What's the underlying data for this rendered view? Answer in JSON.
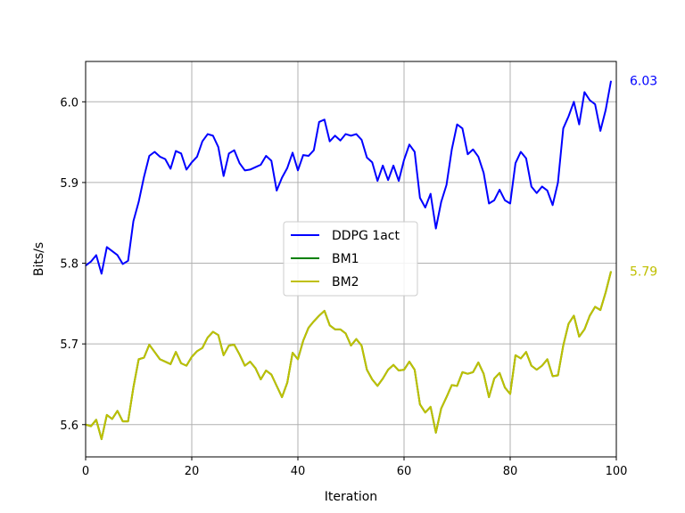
{
  "chart_data": {
    "type": "line",
    "title": "",
    "xlabel": "Iteration",
    "ylabel": "Bits/s",
    "xlim": [
      0,
      100
    ],
    "ylim": [
      5.56,
      6.05
    ],
    "xticks": [
      0,
      20,
      40,
      60,
      80,
      100
    ],
    "yticks": [
      5.6,
      5.7,
      5.8,
      5.9,
      6.0
    ],
    "grid": true,
    "legend": "center",
    "series": [
      {
        "name": "DDPG 1act",
        "color": "#0000ff",
        "values": [
          5.797,
          5.802,
          5.81,
          5.787,
          5.82,
          5.815,
          5.81,
          5.799,
          5.803,
          5.852,
          5.876,
          5.907,
          5.933,
          5.938,
          5.932,
          5.929,
          5.917,
          5.939,
          5.936,
          5.916,
          5.925,
          5.932,
          5.951,
          5.96,
          5.958,
          5.944,
          5.908,
          5.936,
          5.94,
          5.924,
          5.915,
          5.916,
          5.919,
          5.922,
          5.933,
          5.927,
          5.89,
          5.906,
          5.918,
          5.937,
          5.915,
          5.934,
          5.933,
          5.94,
          5.975,
          5.978,
          5.951,
          5.958,
          5.952,
          5.96,
          5.958,
          5.96,
          5.953,
          5.931,
          5.925,
          5.902,
          5.921,
          5.903,
          5.921,
          5.902,
          5.928,
          5.947,
          5.938,
          5.881,
          5.869,
          5.886,
          5.843,
          5.876,
          5.897,
          5.941,
          5.972,
          5.967,
          5.935,
          5.941,
          5.932,
          5.912,
          5.874,
          5.878,
          5.891,
          5.878,
          5.874,
          5.924,
          5.938,
          5.93,
          5.895,
          5.887,
          5.895,
          5.89,
          5.872,
          5.9,
          5.967,
          5.982,
          6.0,
          5.972,
          6.012,
          6.002,
          5.997,
          5.964,
          5.99,
          6.026
        ]
      },
      {
        "name": "BM1",
        "color": "#008000",
        "values": [
          5.6,
          5.598,
          5.606,
          5.582,
          5.612,
          5.607,
          5.617,
          5.604,
          5.604,
          5.646,
          5.681,
          5.683,
          5.699,
          5.69,
          5.681,
          5.678,
          5.675,
          5.69,
          5.676,
          5.673,
          5.684,
          5.691,
          5.695,
          5.708,
          5.715,
          5.711,
          5.686,
          5.698,
          5.699,
          5.687,
          5.673,
          5.678,
          5.67,
          5.656,
          5.667,
          5.662,
          5.648,
          5.634,
          5.652,
          5.689,
          5.681,
          5.704,
          5.72,
          5.728,
          5.735,
          5.741,
          5.723,
          5.718,
          5.718,
          5.713,
          5.698,
          5.706,
          5.698,
          5.668,
          5.656,
          5.648,
          5.657,
          5.668,
          5.674,
          5.667,
          5.668,
          5.678,
          5.668,
          5.625,
          5.615,
          5.622,
          5.59,
          5.62,
          5.634,
          5.649,
          5.648,
          5.665,
          5.663,
          5.665,
          5.677,
          5.663,
          5.634,
          5.657,
          5.664,
          5.646,
          5.638,
          5.686,
          5.682,
          5.69,
          5.673,
          5.668,
          5.673,
          5.681,
          5.66,
          5.661,
          5.698,
          5.725,
          5.735,
          5.709,
          5.718,
          5.735,
          5.746,
          5.742,
          5.764,
          5.79
        ]
      },
      {
        "name": "BM2",
        "color": "#bfbf00",
        "values": [
          5.6,
          5.598,
          5.606,
          5.582,
          5.612,
          5.607,
          5.617,
          5.604,
          5.604,
          5.646,
          5.681,
          5.683,
          5.699,
          5.69,
          5.681,
          5.678,
          5.675,
          5.69,
          5.676,
          5.673,
          5.684,
          5.691,
          5.695,
          5.708,
          5.715,
          5.711,
          5.686,
          5.698,
          5.699,
          5.687,
          5.673,
          5.678,
          5.67,
          5.656,
          5.667,
          5.662,
          5.648,
          5.634,
          5.652,
          5.689,
          5.681,
          5.704,
          5.72,
          5.728,
          5.735,
          5.741,
          5.723,
          5.718,
          5.718,
          5.713,
          5.698,
          5.706,
          5.698,
          5.668,
          5.656,
          5.648,
          5.657,
          5.668,
          5.674,
          5.667,
          5.668,
          5.678,
          5.668,
          5.625,
          5.615,
          5.622,
          5.59,
          5.62,
          5.634,
          5.649,
          5.648,
          5.665,
          5.663,
          5.665,
          5.677,
          5.663,
          5.634,
          5.657,
          5.664,
          5.646,
          5.638,
          5.686,
          5.682,
          5.69,
          5.673,
          5.668,
          5.673,
          5.681,
          5.66,
          5.661,
          5.698,
          5.725,
          5.735,
          5.709,
          5.718,
          5.735,
          5.746,
          5.742,
          5.764,
          5.79
        ]
      }
    ],
    "end_labels": [
      {
        "text": "6.03",
        "color": "#0000ff"
      },
      {
        "text": "5.79",
        "color": "#bfbf00"
      }
    ]
  }
}
